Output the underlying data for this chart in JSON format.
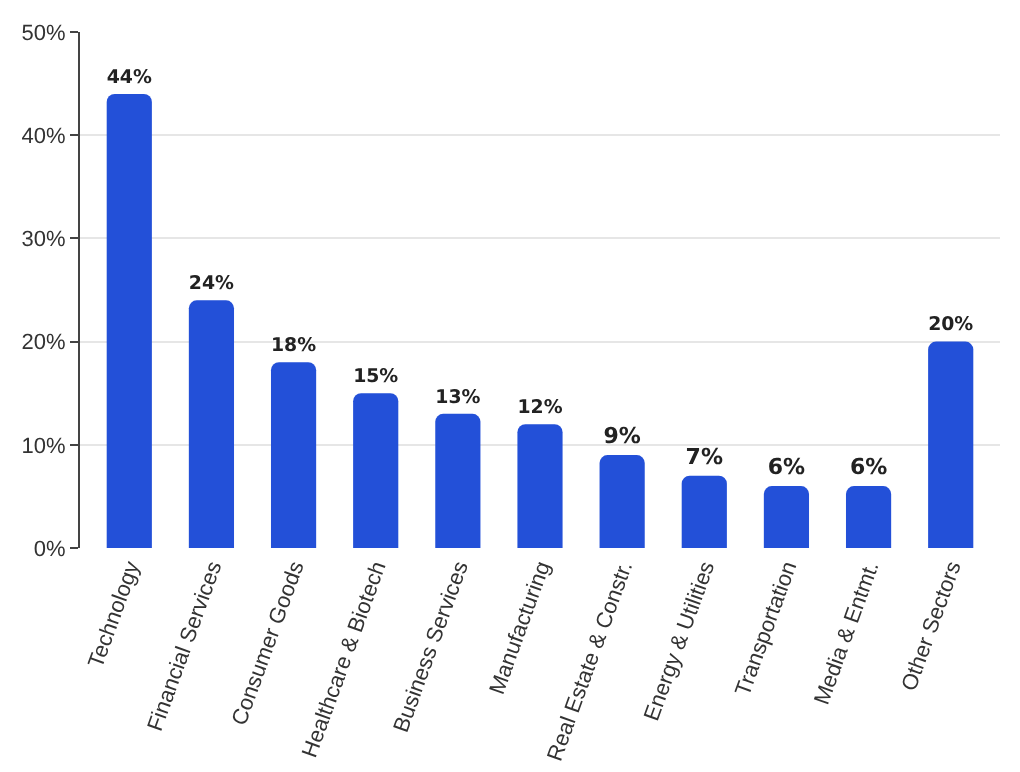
{
  "chart_data": {
    "type": "bar",
    "categories": [
      "Technology",
      "Financial Services",
      "Consumer Goods",
      "Healthcare & Biotech",
      "Business Services",
      "Manufacturing",
      "Real Estate & Constr.",
      "Energy & Utilities",
      "Transportation",
      "Media & Entmt.",
      "Other Sectors"
    ],
    "values": [
      44,
      24,
      18,
      15,
      13,
      12,
      9,
      7,
      6,
      6,
      20
    ],
    "value_labels": [
      "44%",
      "24%",
      "18%",
      "15%",
      "13%",
      "12%",
      "9%",
      "7%",
      "6%",
      "6%",
      "20%"
    ],
    "color": "#2350d8",
    "ylim": [
      0,
      50
    ],
    "yticks": [
      {
        "value": 0,
        "label": "0%"
      },
      {
        "value": 10,
        "label": "10%"
      },
      {
        "value": 20,
        "label": "20%"
      },
      {
        "value": 30,
        "label": "30%"
      },
      {
        "value": 40,
        "label": "40%"
      },
      {
        "value": 50,
        "label": "50%"
      }
    ],
    "grid": "y"
  }
}
